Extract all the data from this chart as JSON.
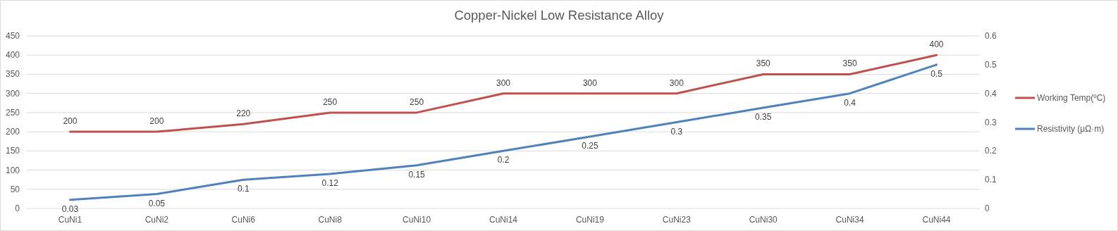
{
  "chart_data": {
    "type": "line",
    "title": "Copper-Nickel Low Resistance Alloy",
    "categories": [
      "CuNi1",
      "CuNi2",
      "CuNi6",
      "CuNi8",
      "CuNi10",
      "CuNi14",
      "CuNi19",
      "CuNi23",
      "CuNi30",
      "CuNi34",
      "CuNi44"
    ],
    "series": [
      {
        "name": "Working Temp(ºC)",
        "color": "#c0504d",
        "values": [
          200,
          200,
          220,
          250,
          250,
          300,
          300,
          300,
          350,
          350,
          400
        ]
      },
      {
        "name": "Resistivity (μΩ·m)",
        "color": "#4f81bd",
        "axis": "y2",
        "values": [
          0.03,
          0.05,
          0.1,
          0.12,
          0.15,
          0.2,
          0.25,
          0.3,
          0.35,
          0.4,
          0.5
        ]
      }
    ],
    "ylim": [
      0,
      450
    ],
    "yticks": [
      0,
      50,
      100,
      150,
      200,
      250,
      300,
      350,
      400,
      450
    ],
    "y2lim": [
      0,
      0.6
    ],
    "y2ticks": [
      0,
      0.1,
      0.2,
      0.3,
      0.4,
      0.5,
      0.6
    ],
    "grid": "y",
    "legend": "right",
    "data_labels": true,
    "marker": "none",
    "line_style": "solid"
  }
}
